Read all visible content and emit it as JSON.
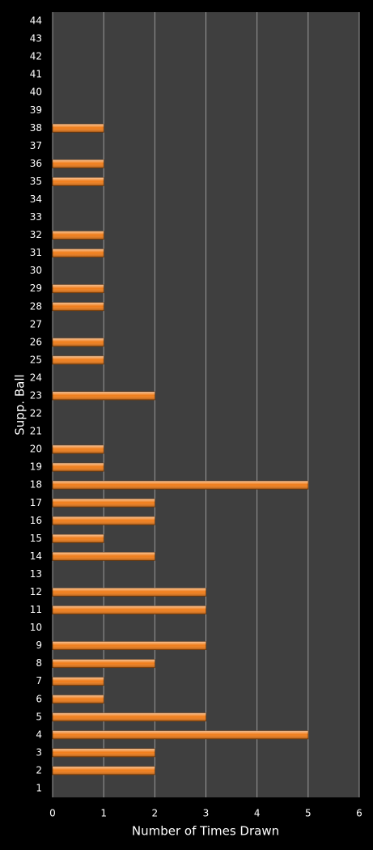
{
  "chart_data": {
    "type": "bar",
    "orientation": "horizontal",
    "x_label": "Number of Times Drawn",
    "y_label": "Supp. Ball",
    "categories": [
      "1",
      "2",
      "3",
      "4",
      "5",
      "6",
      "7",
      "8",
      "9",
      "10",
      "11",
      "12",
      "13",
      "14",
      "15",
      "16",
      "17",
      "18",
      "19",
      "20",
      "21",
      "22",
      "23",
      "24",
      "25",
      "26",
      "27",
      "28",
      "29",
      "30",
      "31",
      "32",
      "33",
      "34",
      "35",
      "36",
      "37",
      "38",
      "39",
      "40",
      "41",
      "42",
      "43",
      "44"
    ],
    "values": [
      0,
      2,
      2,
      5,
      3,
      1,
      1,
      2,
      3,
      0,
      3,
      3,
      0,
      2,
      1,
      2,
      2,
      5,
      1,
      1,
      0,
      0,
      2,
      0,
      1,
      1,
      0,
      1,
      1,
      0,
      1,
      1,
      0,
      0,
      1,
      1,
      0,
      1,
      0,
      0,
      0,
      0,
      0,
      0
    ],
    "color": "#f07d1a",
    "xlim": [
      0,
      6
    ],
    "xticks": [
      0,
      1,
      2,
      3,
      4,
      5,
      6
    ],
    "grid": true
  }
}
